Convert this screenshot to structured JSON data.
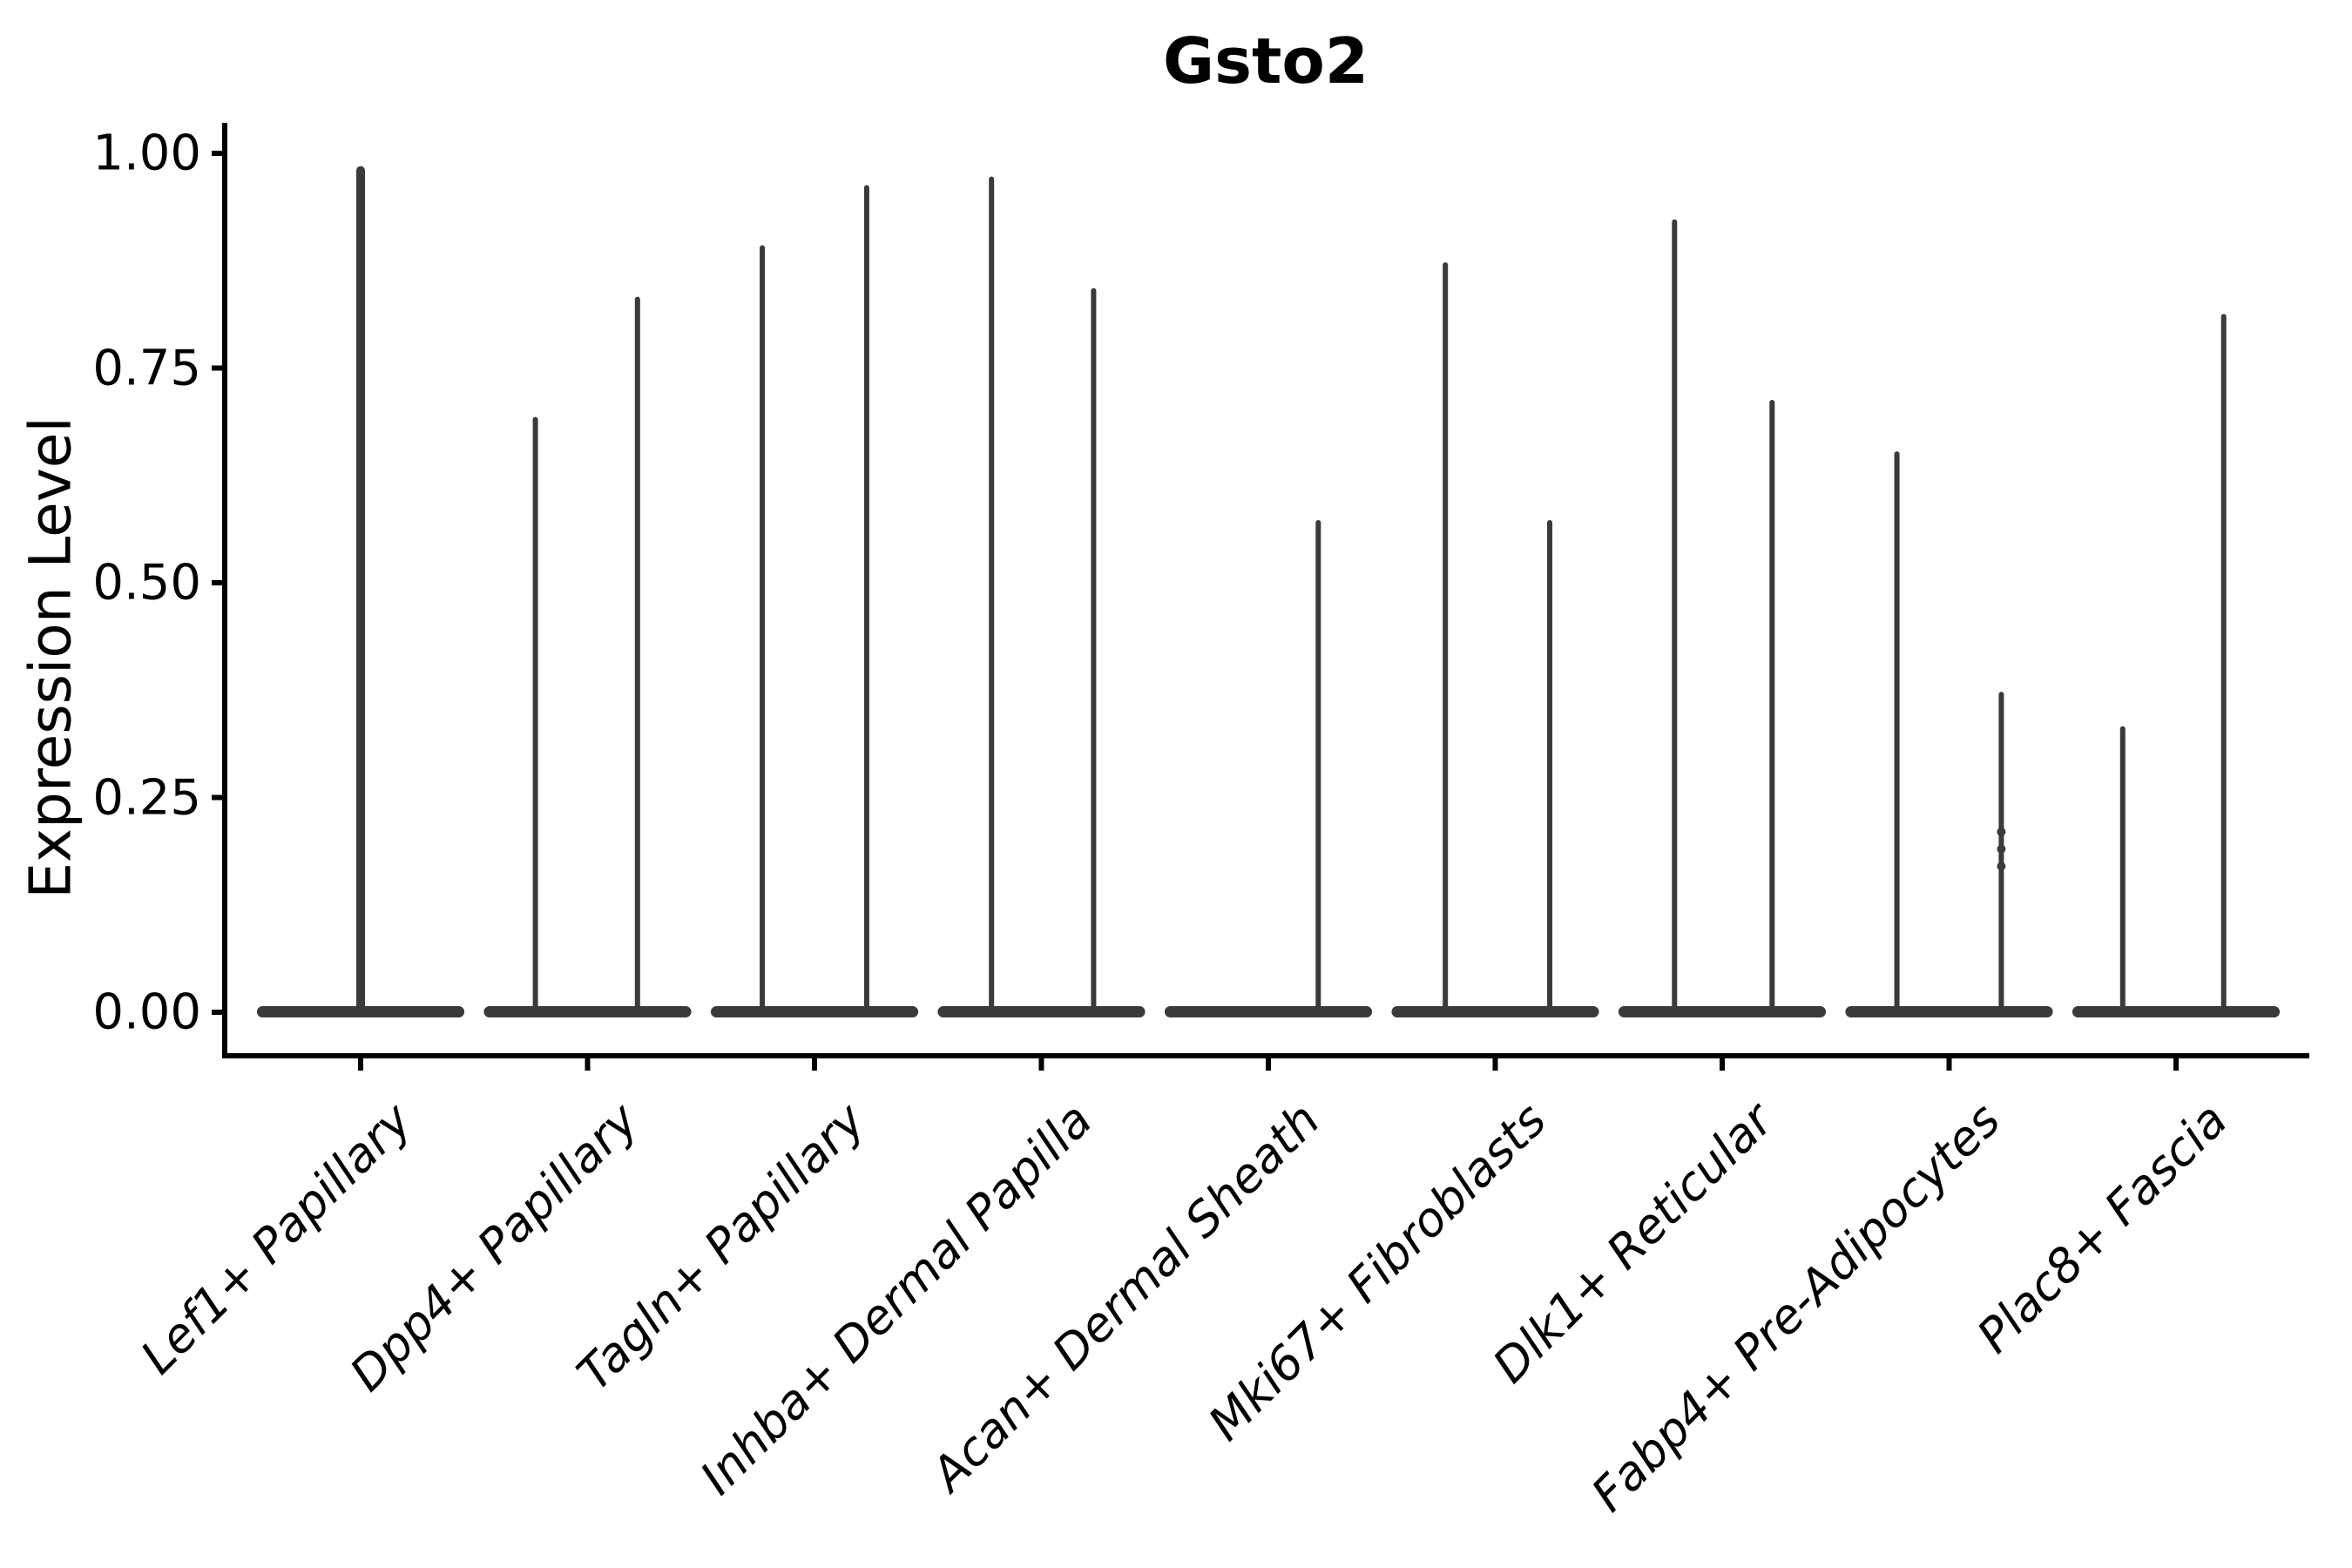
{
  "title": "Gsto2",
  "ylabel": "Expression Level",
  "colors": {
    "violin": "#3a3a3a",
    "axis": "#000000",
    "text": "#000000",
    "background": "#ffffff"
  },
  "chart_data": {
    "type": "violin",
    "title": "Gsto2",
    "xlabel": "",
    "ylabel": "Expression Level",
    "ylim": [
      0,
      1.035
    ],
    "grid": false,
    "legend": "none",
    "yticks": [
      0.0,
      0.25,
      0.5,
      0.75,
      1.0
    ],
    "ytick_labels": [
      "0.00",
      "0.25",
      "0.50",
      "0.75",
      "1.00"
    ],
    "categories": [
      "Lef1+ Papillary",
      "Dpp4+ Papillary",
      "Tagln+ Papillary",
      "Inhba+ Dermal Papilla",
      "Acan+ Dermal Sheath",
      "Mki67+ Fibroblasts",
      "Dlk1+ Reticular",
      "Fabp4+ Pre-Adipocytes",
      "Plac8+ Fascia"
    ],
    "baseline_band": {
      "value": 0.0,
      "halfwidth_frac": 0.457,
      "thickness_px": 13
    },
    "violins": [
      {
        "category": "Lef1+ Papillary",
        "spikes": [
          {
            "offset": 0.0,
            "max": 0.98,
            "width": 10
          }
        ]
      },
      {
        "category": "Dpp4+ Papillary",
        "spikes": [
          {
            "offset": -0.23,
            "max": 0.69
          },
          {
            "offset": 0.22,
            "max": 0.83
          }
        ]
      },
      {
        "category": "Tagln+ Papillary",
        "spikes": [
          {
            "offset": -0.23,
            "max": 0.89
          },
          {
            "offset": 0.23,
            "max": 0.96
          }
        ]
      },
      {
        "category": "Inhba+ Dermal Papilla",
        "spikes": [
          {
            "offset": -0.22,
            "max": 0.97
          },
          {
            "offset": 0.23,
            "max": 0.84
          }
        ]
      },
      {
        "category": "Acan+ Dermal Sheath",
        "spikes": [
          {
            "offset": 0.22,
            "max": 0.57
          }
        ]
      },
      {
        "category": "Mki67+ Fibroblasts",
        "spikes": [
          {
            "offset": -0.22,
            "max": 0.87
          },
          {
            "offset": 0.24,
            "max": 0.57
          }
        ]
      },
      {
        "category": "Dlk1+ Reticular",
        "spikes": [
          {
            "offset": -0.21,
            "max": 0.92
          },
          {
            "offset": 0.22,
            "max": 0.71
          }
        ]
      },
      {
        "category": "Fabp4+ Pre-Adipocytes",
        "spikes": [
          {
            "offset": -0.23,
            "max": 0.65
          },
          {
            "offset": 0.23,
            "max": 0.37,
            "dots": [
              0.21,
              0.19,
              0.17
            ]
          }
        ]
      },
      {
        "category": "Plac8+ Fascia",
        "spikes": [
          {
            "offset": -0.235,
            "max": 0.33
          },
          {
            "offset": 0.21,
            "max": 0.81
          }
        ]
      }
    ]
  }
}
